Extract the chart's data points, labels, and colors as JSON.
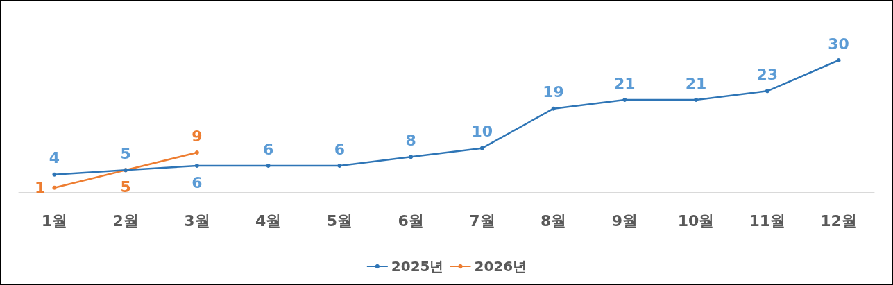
{
  "chart_data": {
    "type": "line",
    "categories": [
      "1월",
      "2월",
      "3월",
      "4월",
      "5월",
      "6월",
      "7월",
      "8월",
      "9월",
      "10월",
      "11월",
      "12월"
    ],
    "series": [
      {
        "name": "2025년",
        "color": "#2e75b6",
        "values": [
          4,
          5,
          6,
          6,
          6,
          8,
          10,
          19,
          21,
          21,
          23,
          30
        ]
      },
      {
        "name": "2026년",
        "color": "#ed7d31",
        "values": [
          1,
          5,
          9,
          null,
          null,
          null,
          null,
          null,
          null,
          null,
          null,
          null
        ]
      }
    ],
    "data_labels": true,
    "marker": "circle",
    "legend": "bottom",
    "grid": false
  }
}
